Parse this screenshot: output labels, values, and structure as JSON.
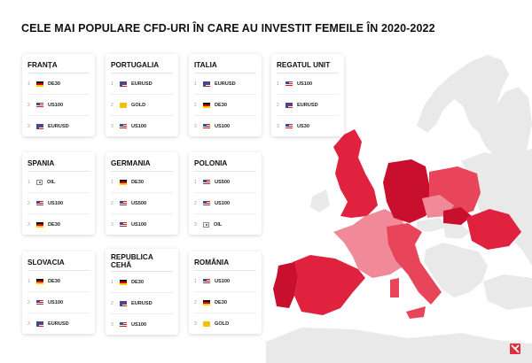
{
  "title": "CELE MAI POPULARE CFD-URI ÎN CARE AU INVESTIT FEMEILE ÎN 2020-2022",
  "chart_data": {
    "type": "table",
    "title": "CELE MAI POPULARE CFD-URI ÎN CARE AU INVESTIT FEMEILE ÎN 2020-2022",
    "countries": [
      {
        "name": "FRANȚA",
        "items": [
          {
            "rank": "1",
            "icon": "de-flag-icon",
            "label": "DE30"
          },
          {
            "rank": "2",
            "icon": "us-flag-icon",
            "label": "US100"
          },
          {
            "rank": "3",
            "icon": "eu-us-flag-icon",
            "label": "EURUSD"
          }
        ]
      },
      {
        "name": "PORTUGALIA",
        "items": [
          {
            "rank": "1",
            "icon": "eu-us-flag-icon",
            "label": "EURUSD"
          },
          {
            "rank": "2",
            "icon": "gold-icon",
            "label": "GOLD"
          },
          {
            "rank": "3",
            "icon": "us-flag-icon",
            "label": "US100"
          }
        ]
      },
      {
        "name": "ITALIA",
        "items": [
          {
            "rank": "1",
            "icon": "eu-us-flag-icon",
            "label": "EURUSD"
          },
          {
            "rank": "2",
            "icon": "de-flag-icon",
            "label": "DE30"
          },
          {
            "rank": "3",
            "icon": "us-flag-icon",
            "label": "US100"
          }
        ]
      },
      {
        "name": "REGATUL UNIT",
        "items": [
          {
            "rank": "1",
            "icon": "us-flag-icon",
            "label": "US100"
          },
          {
            "rank": "2",
            "icon": "eu-us-flag-icon",
            "label": "EURUSD"
          },
          {
            "rank": "3",
            "icon": "us-flag-icon",
            "label": "US30"
          }
        ]
      },
      {
        "name": "SPANIA",
        "items": [
          {
            "rank": "1",
            "icon": "oil-icon",
            "label": "OIL"
          },
          {
            "rank": "2",
            "icon": "us-flag-icon",
            "label": "US100"
          },
          {
            "rank": "3",
            "icon": "de-flag-icon",
            "label": "DE30"
          }
        ]
      },
      {
        "name": "GERMANIA",
        "items": [
          {
            "rank": "1",
            "icon": "de-flag-icon",
            "label": "DE30"
          },
          {
            "rank": "2",
            "icon": "us-flag-icon",
            "label": "US500"
          },
          {
            "rank": "3",
            "icon": "us-flag-icon",
            "label": "US100"
          }
        ]
      },
      {
        "name": "POLONIA",
        "items": [
          {
            "rank": "1",
            "icon": "us-flag-icon",
            "label": "US500"
          },
          {
            "rank": "2",
            "icon": "us-flag-icon",
            "label": "US100"
          },
          {
            "rank": "3",
            "icon": "oil-icon",
            "label": "OIL"
          }
        ]
      },
      {
        "name": "SLOVACIA",
        "items": [
          {
            "rank": "1",
            "icon": "de-flag-icon",
            "label": "DE30"
          },
          {
            "rank": "2",
            "icon": "us-flag-icon",
            "label": "US100"
          },
          {
            "rank": "3",
            "icon": "eu-us-flag-icon",
            "label": "EURUSD"
          }
        ]
      },
      {
        "name": "REPUBLICA CEHĂ",
        "items": [
          {
            "rank": "1",
            "icon": "de-flag-icon",
            "label": "DE30"
          },
          {
            "rank": "2",
            "icon": "eu-us-flag-icon",
            "label": "EURUSD"
          },
          {
            "rank": "3",
            "icon": "us-flag-icon",
            "label": "US100"
          }
        ]
      },
      {
        "name": "ROMÂNIA",
        "items": [
          {
            "rank": "1",
            "icon": "us-flag-icon",
            "label": "US100"
          },
          {
            "rank": "2",
            "icon": "de-flag-icon",
            "label": "DE30"
          },
          {
            "rank": "3",
            "icon": "gold-icon",
            "label": "GOLD"
          }
        ]
      }
    ]
  },
  "colors": {
    "map_base": "#e9e9e9",
    "dark_red": "#c8102e",
    "red": "#e0223f",
    "medium_red": "#e8455a",
    "light_red": "#f08a98",
    "logo": "#e03040"
  }
}
